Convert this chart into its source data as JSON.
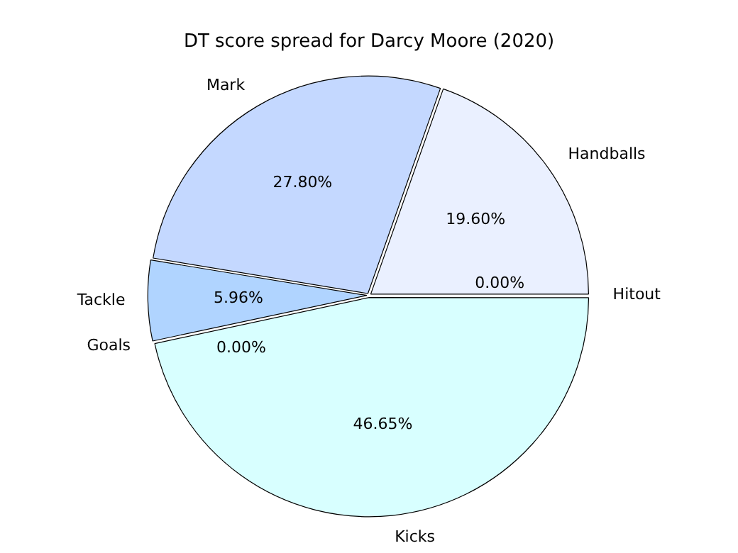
{
  "chart_data": {
    "type": "pie",
    "title": "DT score spread for Darcy Moore (2020)",
    "categories": [
      "Hitout",
      "Kicks",
      "Goals",
      "Tackle",
      "Mark",
      "Handballs"
    ],
    "values": [
      0,
      46.65,
      0,
      5.96,
      27.8,
      19.6
    ],
    "value_labels": [
      "0.00%",
      "46.65%",
      "0.00%",
      "5.96%",
      "27.80%",
      "19.60%"
    ],
    "colors": [
      "#f0f0ff",
      "#d8ffff",
      "#e0f0ff",
      "#b0d4ff",
      "#c4d8ff",
      "#eaf0ff"
    ],
    "legend": false
  }
}
